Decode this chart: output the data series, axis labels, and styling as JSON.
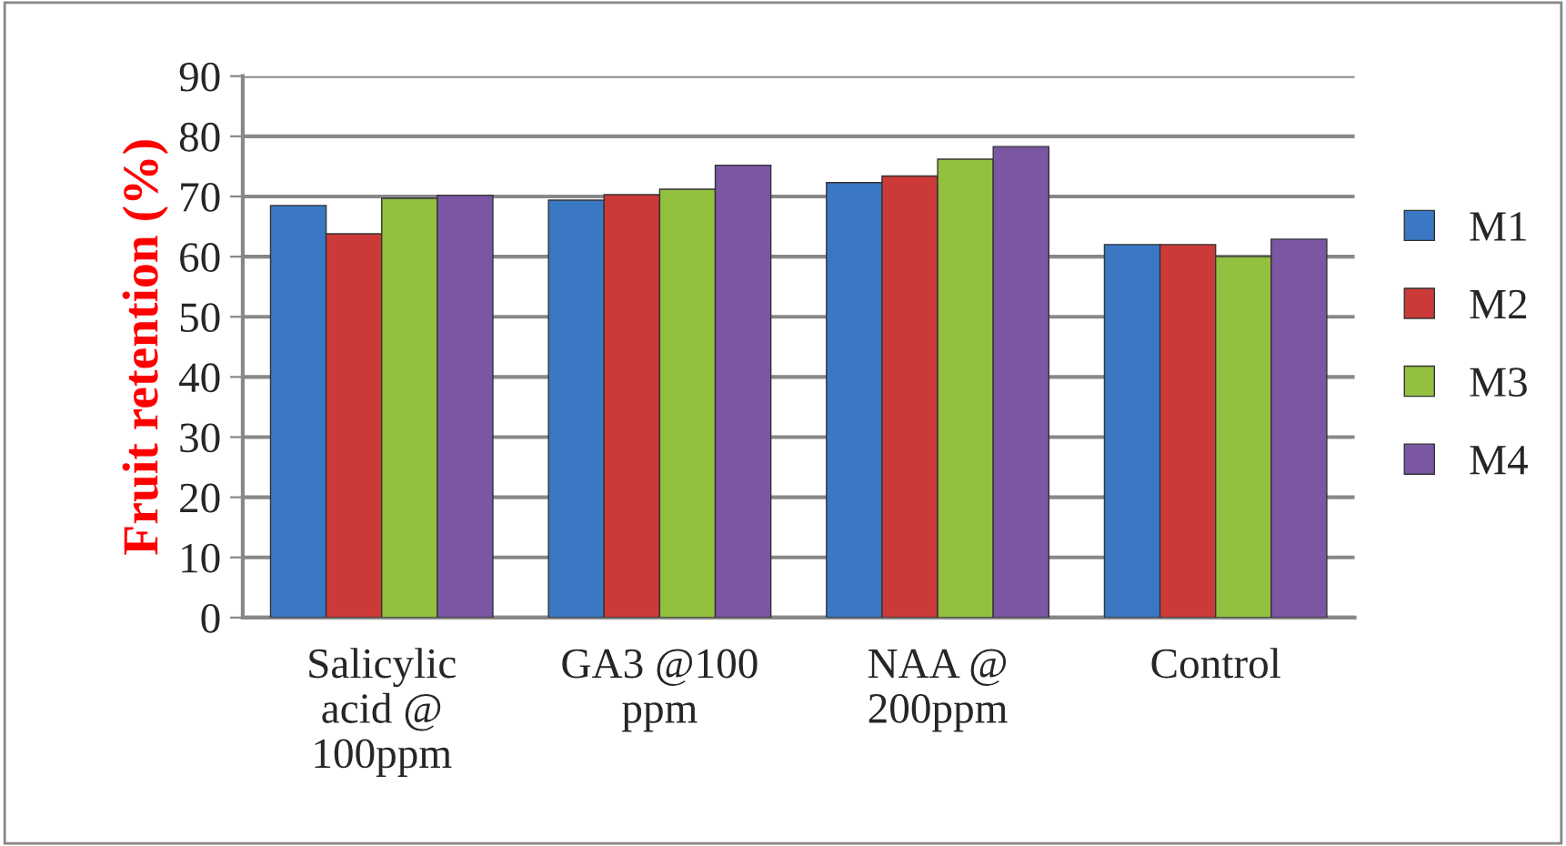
{
  "chart_data": {
    "type": "bar",
    "ylabel": "Fruit retention (%)",
    "categories": [
      "Salicylic\nacid @\n100ppm",
      "GA3 @100\nppm",
      "NAA @\n200ppm",
      "Control"
    ],
    "series": [
      {
        "name": "M1",
        "color": "#3a78c3",
        "values": [
          68.5,
          69.4,
          72.3,
          62.0
        ]
      },
      {
        "name": "M2",
        "color": "#cc3a38",
        "values": [
          63.8,
          70.3,
          73.4,
          62.0
        ]
      },
      {
        "name": "M3",
        "color": "#94c03f",
        "values": [
          69.7,
          71.2,
          76.2,
          60.0
        ]
      },
      {
        "name": "M4",
        "color": "#7a56a3",
        "values": [
          70.2,
          75.2,
          78.3,
          62.9
        ]
      }
    ],
    "ylim": [
      0,
      90
    ],
    "yticks": [
      0,
      10,
      20,
      30,
      40,
      50,
      60,
      70,
      80,
      90
    ],
    "grid": "y",
    "legend": "right"
  }
}
